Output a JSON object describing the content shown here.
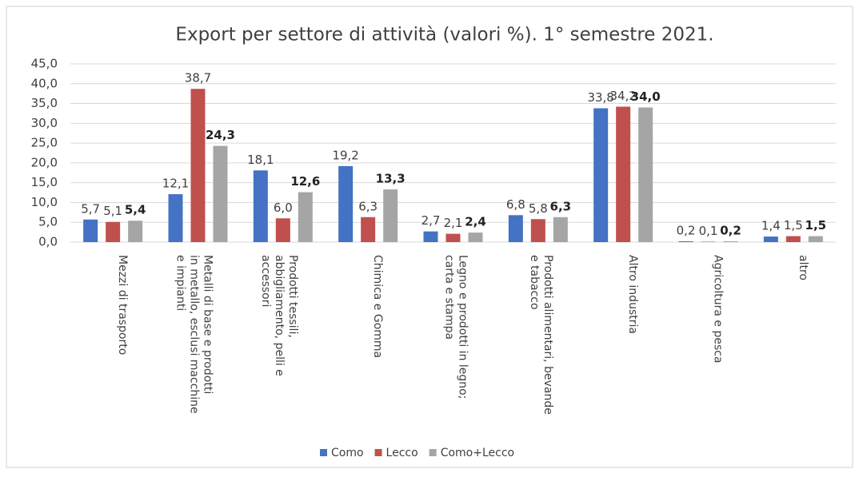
{
  "chart_data": {
    "type": "bar",
    "title": "Export per settore di attività (valori %). 1° semestre 2021.",
    "categories": [
      "Mezzi di trasporto",
      "Metalli di base e prodotti in metallo, esclusi macchine e impianti",
      "Prodotti tessili, abbigliamento, pelli e accessori",
      "Chimica e Gomma",
      "Legno e prodotti in legno; carta e stampa",
      "Prodotti alimentari, bevande e tabacco",
      "Altro industria",
      "Agricoltura e pesca",
      "altro"
    ],
    "series": [
      {
        "name": "Como",
        "color": "#4472c4",
        "values": [
          5.7,
          12.1,
          18.1,
          19.2,
          2.7,
          6.8,
          33.8,
          0.2,
          1.4
        ],
        "value_labels": [
          "5,7",
          "12,1",
          "18,1",
          "19,2",
          "2,7",
          "6,8",
          "33,8",
          "0,2",
          "1,4"
        ]
      },
      {
        "name": "Lecco",
        "color": "#c0504d",
        "values": [
          5.1,
          38.7,
          6.0,
          6.3,
          2.1,
          5.8,
          34.2,
          0.1,
          1.5
        ],
        "value_labels": [
          "5,1",
          "38,7",
          "6,0",
          "6,3",
          "2,1",
          "5,8",
          "34,2",
          "0,1",
          "1,5"
        ]
      },
      {
        "name": "Como+Lecco",
        "color": "#a5a5a5",
        "values": [
          5.4,
          24.3,
          12.6,
          13.3,
          2.4,
          6.3,
          34.0,
          0.2,
          1.5
        ],
        "value_labels": [
          "5,4",
          "24,3",
          "12,6",
          "13,3",
          "2,4",
          "6,3",
          "34,0",
          "0,2",
          "1,5"
        ]
      }
    ],
    "ylim": [
      0,
      45
    ],
    "yticks": [
      {
        "value": 0,
        "label": "0,0"
      },
      {
        "value": 5,
        "label": "5,0"
      },
      {
        "value": 10,
        "label": "10,0"
      },
      {
        "value": 15,
        "label": "15,0"
      },
      {
        "value": 20,
        "label": "20,0"
      },
      {
        "value": 25,
        "label": "25,0"
      },
      {
        "value": 30,
        "label": "30,0"
      },
      {
        "value": 35,
        "label": "35,0"
      },
      {
        "value": 40,
        "label": "40,0"
      },
      {
        "value": 45,
        "label": "45,0"
      }
    ],
    "grid": true,
    "legend": "bottom"
  }
}
